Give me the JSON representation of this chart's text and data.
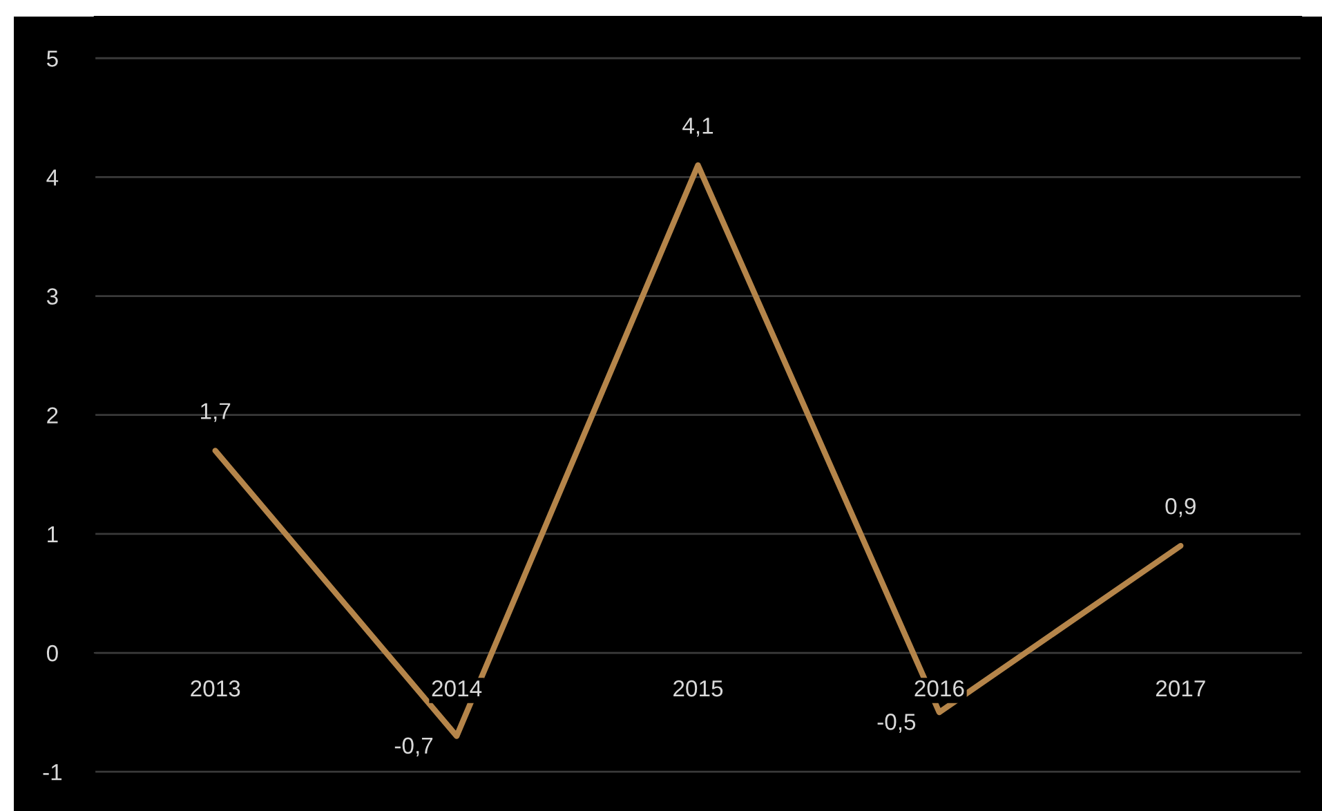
{
  "chart_data": {
    "type": "line",
    "categories": [
      "2013",
      "2014",
      "2015",
      "2016",
      "2017"
    ],
    "series": [
      {
        "color": "#b5854a",
        "values": [
          1.7,
          -0.7,
          4.1,
          -0.5,
          0.9
        ],
        "value_labels": [
          "1,7",
          "-0,7",
          "4,1",
          "-0,5",
          "0,9"
        ]
      }
    ],
    "ylim": [
      -1.33,
      5.35
    ],
    "yticks": [
      -1,
      0,
      1,
      2,
      3,
      4,
      5
    ],
    "grid": "y",
    "marker": "none",
    "line_style": "solid"
  }
}
